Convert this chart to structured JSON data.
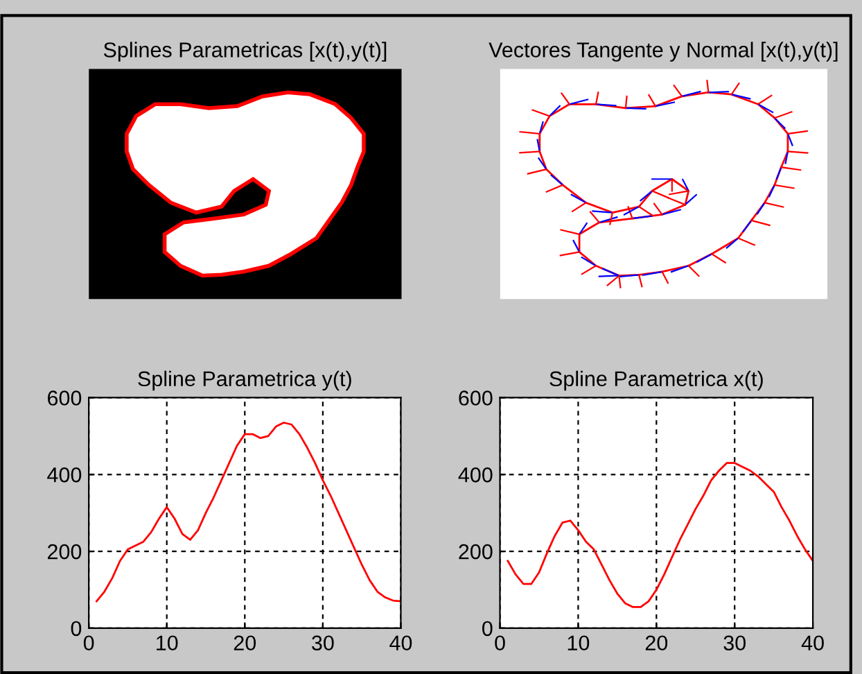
{
  "chart_data": [
    {
      "type": "other",
      "title": "Splines Parametricas [x(t),y(t)]"
    },
    {
      "type": "other",
      "title": "Vectores Tangente y Normal [x(t),y(t)]"
    },
    {
      "type": "line",
      "title": "Spline Parametrica y(t)",
      "x": [
        1,
        2,
        3,
        4,
        5,
        6,
        7,
        8,
        9,
        10,
        11,
        12,
        13,
        14,
        15,
        16,
        17,
        18,
        19,
        20,
        21,
        22,
        23,
        24,
        25,
        26,
        27,
        28,
        29,
        30,
        31,
        32,
        33,
        34,
        35,
        36,
        37,
        38,
        39,
        40
      ],
      "series": [
        {
          "color": "#ff0000",
          "values": [
            70,
            95,
            130,
            175,
            205,
            215,
            225,
            250,
            285,
            315,
            285,
            245,
            230,
            255,
            300,
            340,
            385,
            430,
            475,
            505,
            505,
            495,
            500,
            525,
            535,
            530,
            505,
            470,
            430,
            385,
            345,
            300,
            255,
            210,
            165,
            125,
            95,
            80,
            72,
            70
          ]
        }
      ],
      "xlim": [
        0,
        40
      ],
      "ylim": [
        0,
        600
      ],
      "xticks": [
        0,
        10,
        20,
        30,
        40
      ],
      "yticks": [
        0,
        200,
        400,
        600
      ],
      "grid": true
    },
    {
      "type": "line",
      "title": "Spline Parametrica x(t)",
      "x": [
        1,
        2,
        3,
        4,
        5,
        6,
        7,
        8,
        9,
        10,
        11,
        12,
        13,
        14,
        15,
        16,
        17,
        18,
        19,
        20,
        21,
        22,
        23,
        24,
        25,
        26,
        27,
        28,
        29,
        30,
        31,
        32,
        33,
        34,
        35,
        36,
        37,
        38,
        39,
        40
      ],
      "series": [
        {
          "color": "#ff0000",
          "values": [
            175,
            140,
            115,
            115,
            145,
            195,
            240,
            275,
            280,
            255,
            225,
            205,
            165,
            125,
            90,
            65,
            55,
            55,
            70,
            100,
            140,
            185,
            230,
            270,
            310,
            345,
            385,
            410,
            430,
            430,
            420,
            410,
            395,
            375,
            355,
            315,
            280,
            240,
            205,
            175
          ]
        }
      ],
      "xlim": [
        0,
        40
      ],
      "ylim": [
        0,
        600
      ],
      "xticks": [
        0,
        10,
        20,
        30,
        40
      ],
      "yticks": [
        0,
        200,
        400,
        600
      ],
      "grid": true
    }
  ]
}
